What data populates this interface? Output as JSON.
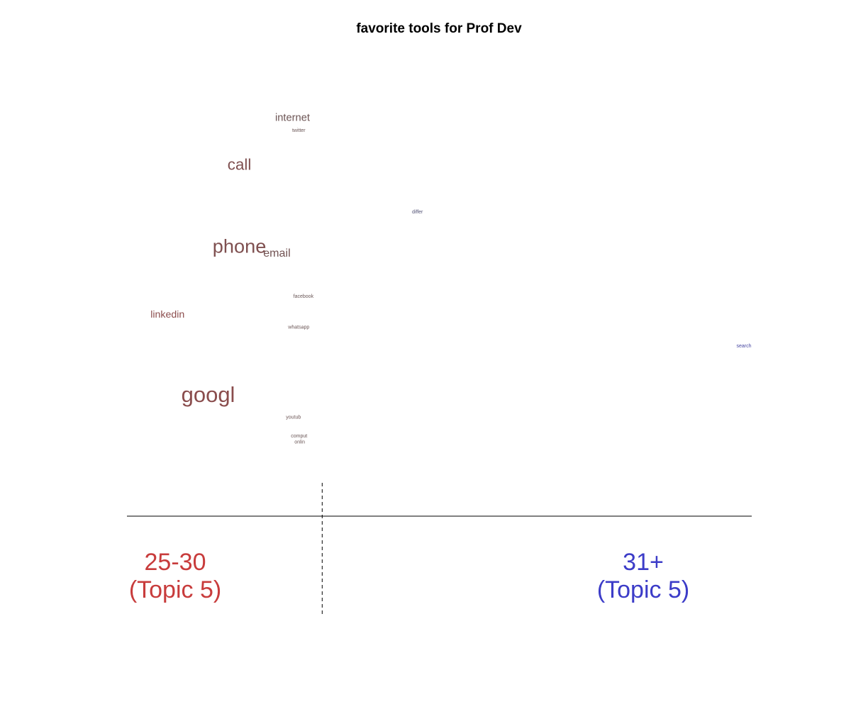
{
  "chart_data": {
    "type": "scatter",
    "title": "favorite tools for Prof Dev",
    "xlim": [
      -1,
      1
    ],
    "ylim": [
      0,
      1
    ],
    "colors": {
      "left": "#c83c3c",
      "right": "#3c3cc8",
      "neutral": "#5a5a5a"
    },
    "words": [
      {
        "label": "internet",
        "x": -0.47,
        "y": 0.895,
        "weight": 0.32
      },
      {
        "label": "twitter",
        "x": -0.45,
        "y": 0.865,
        "weight": 0.0
      },
      {
        "label": "call",
        "x": -0.64,
        "y": 0.78,
        "weight": 0.64
      },
      {
        "label": "differ",
        "x": -0.07,
        "y": 0.668,
        "weight": 0.0
      },
      {
        "label": "phone",
        "x": -0.64,
        "y": 0.582,
        "weight": 0.84
      },
      {
        "label": "email",
        "x": -0.52,
        "y": 0.568,
        "weight": 0.38
      },
      {
        "label": "facebook",
        "x": -0.435,
        "y": 0.465,
        "weight": 0.0
      },
      {
        "label": "linkedin",
        "x": -0.87,
        "y": 0.42,
        "weight": 0.3
      },
      {
        "label": "whatsapp",
        "x": -0.45,
        "y": 0.39,
        "weight": 0.0
      },
      {
        "label": "search",
        "x": 0.975,
        "y": 0.345,
        "weight": 0.0
      },
      {
        "label": "googl",
        "x": -0.74,
        "y": 0.224,
        "weight": 1.0
      },
      {
        "label": "youtub",
        "x": -0.467,
        "y": 0.173,
        "weight": 0.0
      },
      {
        "label": "comput",
        "x": -0.449,
        "y": 0.128,
        "weight": 0.0
      },
      {
        "label": "onlin",
        "x": -0.447,
        "y": 0.113,
        "weight": 0.0
      }
    ],
    "groups": [
      {
        "label": "25-30",
        "sublabel": "(Topic 5)",
        "color": "#c83c3c"
      },
      {
        "label": "31+",
        "sublabel": "(Topic 5)",
        "color": "#3c3cc8"
      }
    ],
    "divider_x": -0.375
  }
}
